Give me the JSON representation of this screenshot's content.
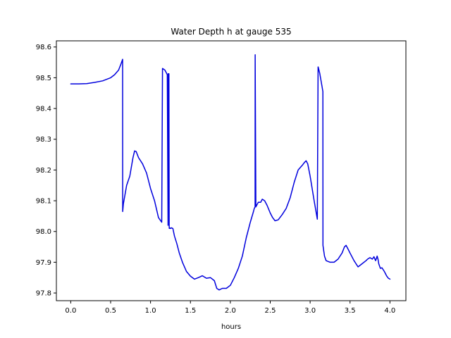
{
  "chart_data": {
    "type": "line",
    "title": "Water Depth h at gauge 535",
    "xlabel": "hours",
    "ylabel": "",
    "xlim": [
      -0.18,
      4.2
    ],
    "ylim": [
      97.775,
      98.62
    ],
    "xticks": [
      0.0,
      0.5,
      1.0,
      1.5,
      2.0,
      2.5,
      3.0,
      3.5,
      4.0
    ],
    "xtick_labels": [
      "0.0",
      "0.5",
      "1.0",
      "1.5",
      "2.0",
      "2.5",
      "3.0",
      "3.5",
      "4.0"
    ],
    "yticks": [
      97.8,
      97.9,
      98.0,
      98.1,
      98.2,
      98.3,
      98.4,
      98.5,
      98.6
    ],
    "ytick_labels": [
      "97.8",
      "97.9",
      "98.0",
      "98.1",
      "98.2",
      "98.3",
      "98.4",
      "98.5",
      "98.6"
    ],
    "grid": false,
    "series": [
      {
        "color": "#0000dd",
        "x": [
          0.0,
          0.1,
          0.2,
          0.3,
          0.4,
          0.5,
          0.55,
          0.6,
          0.63,
          0.65,
          0.651,
          0.66,
          0.7,
          0.74,
          0.78,
          0.8,
          0.82,
          0.85,
          0.9,
          0.95,
          1.0,
          1.05,
          1.1,
          1.14,
          1.15,
          1.151,
          1.18,
          1.21,
          1.22,
          1.221,
          1.23,
          1.234,
          1.235,
          1.24,
          1.245,
          1.25,
          1.26,
          1.28,
          1.3,
          1.33,
          1.36,
          1.4,
          1.45,
          1.5,
          1.55,
          1.6,
          1.65,
          1.7,
          1.75,
          1.8,
          1.83,
          1.86,
          1.9,
          1.95,
          2.0,
          2.05,
          2.1,
          2.15,
          2.2,
          2.25,
          2.29,
          2.3,
          2.31,
          2.311,
          2.32,
          2.35,
          2.38,
          2.4,
          2.43,
          2.46,
          2.5,
          2.53,
          2.56,
          2.6,
          2.65,
          2.7,
          2.75,
          2.8,
          2.85,
          2.9,
          2.93,
          2.95,
          2.97,
          3.0,
          3.05,
          3.09,
          3.1,
          3.101,
          3.12,
          3.15,
          3.16,
          3.161,
          3.18,
          3.2,
          3.25,
          3.3,
          3.35,
          3.4,
          3.43,
          3.45,
          3.48,
          3.5,
          3.55,
          3.6,
          3.65,
          3.7,
          3.72,
          3.75,
          3.78,
          3.8,
          3.82,
          3.84,
          3.85,
          3.86,
          3.88,
          3.9,
          3.93,
          3.96,
          3.98,
          4.0
        ],
        "y": [
          98.48,
          98.48,
          98.481,
          98.485,
          98.49,
          98.5,
          98.51,
          98.525,
          98.545,
          98.56,
          98.065,
          98.09,
          98.15,
          98.18,
          98.24,
          98.262,
          98.26,
          98.24,
          98.22,
          98.19,
          98.14,
          98.1,
          98.045,
          98.03,
          98.53,
          98.53,
          98.525,
          98.51,
          98.02,
          98.513,
          98.513,
          98.02,
          98.01,
          98.012,
          98.01,
          98.01,
          98.012,
          98.01,
          97.985,
          97.96,
          97.93,
          97.9,
          97.87,
          97.855,
          97.845,
          97.85,
          97.856,
          97.848,
          97.85,
          97.84,
          97.815,
          97.81,
          97.815,
          97.815,
          97.825,
          97.85,
          97.88,
          97.92,
          97.98,
          98.03,
          98.065,
          98.075,
          98.08,
          98.575,
          98.08,
          98.095,
          98.095,
          98.105,
          98.1,
          98.085,
          98.06,
          98.045,
          98.035,
          98.038,
          98.055,
          98.075,
          98.11,
          98.16,
          98.2,
          98.215,
          98.225,
          98.23,
          98.22,
          98.18,
          98.1,
          98.04,
          98.535,
          98.535,
          98.515,
          98.47,
          98.455,
          97.955,
          97.92,
          97.905,
          97.9,
          97.9,
          97.91,
          97.93,
          97.95,
          97.955,
          97.94,
          97.93,
          97.905,
          97.885,
          97.895,
          97.905,
          97.91,
          97.915,
          97.91,
          97.918,
          97.905,
          97.92,
          97.91,
          97.895,
          97.88,
          97.882,
          97.87,
          97.855,
          97.848,
          97.845
        ]
      }
    ]
  }
}
